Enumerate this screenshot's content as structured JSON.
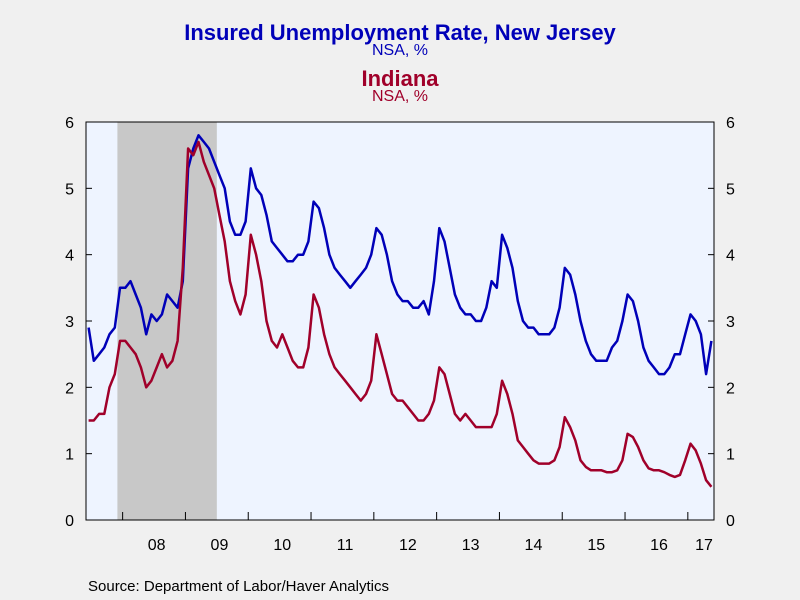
{
  "titles": {
    "series1_title": "Insured Unemployment Rate, New Jersey",
    "series1_unit": "NSA, %",
    "series2_title": "Indiana",
    "series2_unit": "NSA, %"
  },
  "source": "Source:  Department of Labor/Haver Analytics",
  "colors": {
    "nj": "#0000b8",
    "indiana": "#a0002a",
    "plot_bg": "#eef4ff",
    "recession": "#c8c8c8",
    "page_bg": "#f0f0f0"
  },
  "chart_data": {
    "type": "line",
    "x_ticks": [
      "08",
      "09",
      "10",
      "11",
      "12",
      "13",
      "14",
      "15",
      "16",
      "17"
    ],
    "xlim": [
      "2007-06",
      "2017-05"
    ],
    "ylim": [
      0,
      6
    ],
    "y_ticks": [
      0,
      1,
      2,
      3,
      4,
      5,
      6
    ],
    "y_axis_left_right": true,
    "recession_shading": [
      "2007-12",
      "2009-06"
    ],
    "series": [
      {
        "name": "Insured Unemployment Rate, New Jersey",
        "color": "#0000b8",
        "points": [
          [
            "2007-06",
            2.9
          ],
          [
            "2007-07",
            2.4
          ],
          [
            "2007-08",
            2.5
          ],
          [
            "2007-09",
            2.6
          ],
          [
            "2007-10",
            2.8
          ],
          [
            "2007-11",
            2.9
          ],
          [
            "2007-12",
            3.5
          ],
          [
            "2008-01",
            3.5
          ],
          [
            "2008-02",
            3.6
          ],
          [
            "2008-03",
            3.4
          ],
          [
            "2008-04",
            3.2
          ],
          [
            "2008-05",
            2.8
          ],
          [
            "2008-06",
            3.1
          ],
          [
            "2008-07",
            3.0
          ],
          [
            "2008-08",
            3.1
          ],
          [
            "2008-09",
            3.4
          ],
          [
            "2008-10",
            3.3
          ],
          [
            "2008-11",
            3.2
          ],
          [
            "2008-12",
            3.6
          ],
          [
            "2009-01",
            5.3
          ],
          [
            "2009-02",
            5.6
          ],
          [
            "2009-03",
            5.8
          ],
          [
            "2009-04",
            5.7
          ],
          [
            "2009-05",
            5.6
          ],
          [
            "2009-06",
            5.4
          ],
          [
            "2009-07",
            5.2
          ],
          [
            "2009-08",
            5.0
          ],
          [
            "2009-09",
            4.5
          ],
          [
            "2009-10",
            4.3
          ],
          [
            "2009-11",
            4.3
          ],
          [
            "2009-12",
            4.5
          ],
          [
            "2010-01",
            5.3
          ],
          [
            "2010-02",
            5.0
          ],
          [
            "2010-03",
            4.9
          ],
          [
            "2010-04",
            4.6
          ],
          [
            "2010-05",
            4.2
          ],
          [
            "2010-06",
            4.1
          ],
          [
            "2010-07",
            4.0
          ],
          [
            "2010-08",
            3.9
          ],
          [
            "2010-09",
            3.9
          ],
          [
            "2010-10",
            4.0
          ],
          [
            "2010-11",
            4.0
          ],
          [
            "2010-12",
            4.2
          ],
          [
            "2011-01",
            4.8
          ],
          [
            "2011-02",
            4.7
          ],
          [
            "2011-03",
            4.4
          ],
          [
            "2011-04",
            4.0
          ],
          [
            "2011-05",
            3.8
          ],
          [
            "2011-06",
            3.7
          ],
          [
            "2011-07",
            3.6
          ],
          [
            "2011-08",
            3.5
          ],
          [
            "2011-09",
            3.6
          ],
          [
            "2011-10",
            3.7
          ],
          [
            "2011-11",
            3.8
          ],
          [
            "2011-12",
            4.0
          ],
          [
            "2012-01",
            4.4
          ],
          [
            "2012-02",
            4.3
          ],
          [
            "2012-03",
            4.0
          ],
          [
            "2012-04",
            3.6
          ],
          [
            "2012-05",
            3.4
          ],
          [
            "2012-06",
            3.3
          ],
          [
            "2012-07",
            3.3
          ],
          [
            "2012-08",
            3.2
          ],
          [
            "2012-09",
            3.2
          ],
          [
            "2012-10",
            3.3
          ],
          [
            "2012-11",
            3.1
          ],
          [
            "2012-12",
            3.6
          ],
          [
            "2013-01",
            4.4
          ],
          [
            "2013-02",
            4.2
          ],
          [
            "2013-03",
            3.8
          ],
          [
            "2013-04",
            3.4
          ],
          [
            "2013-05",
            3.2
          ],
          [
            "2013-06",
            3.1
          ],
          [
            "2013-07",
            3.1
          ],
          [
            "2013-08",
            3.0
          ],
          [
            "2013-09",
            3.0
          ],
          [
            "2013-10",
            3.2
          ],
          [
            "2013-11",
            3.6
          ],
          [
            "2013-12",
            3.5
          ],
          [
            "2014-01",
            4.3
          ],
          [
            "2014-02",
            4.1
          ],
          [
            "2014-03",
            3.8
          ],
          [
            "2014-04",
            3.3
          ],
          [
            "2014-05",
            3.0
          ],
          [
            "2014-06",
            2.9
          ],
          [
            "2014-07",
            2.9
          ],
          [
            "2014-08",
            2.8
          ],
          [
            "2014-09",
            2.8
          ],
          [
            "2014-10",
            2.8
          ],
          [
            "2014-11",
            2.9
          ],
          [
            "2014-12",
            3.2
          ],
          [
            "2015-01",
            3.8
          ],
          [
            "2015-02",
            3.7
          ],
          [
            "2015-03",
            3.4
          ],
          [
            "2015-04",
            3.0
          ],
          [
            "2015-05",
            2.7
          ],
          [
            "2015-06",
            2.5
          ],
          [
            "2015-07",
            2.4
          ],
          [
            "2015-08",
            2.4
          ],
          [
            "2015-09",
            2.4
          ],
          [
            "2015-10",
            2.6
          ],
          [
            "2015-11",
            2.7
          ],
          [
            "2015-12",
            3.0
          ],
          [
            "2016-01",
            3.4
          ],
          [
            "2016-02",
            3.3
          ],
          [
            "2016-03",
            3.0
          ],
          [
            "2016-04",
            2.6
          ],
          [
            "2016-05",
            2.4
          ],
          [
            "2016-06",
            2.3
          ],
          [
            "2016-07",
            2.2
          ],
          [
            "2016-08",
            2.2
          ],
          [
            "2016-09",
            2.3
          ],
          [
            "2016-10",
            2.5
          ],
          [
            "2016-11",
            2.5
          ],
          [
            "2016-12",
            2.8
          ],
          [
            "2017-01",
            3.1
          ],
          [
            "2017-02",
            3.0
          ],
          [
            "2017-03",
            2.8
          ],
          [
            "2017-04",
            2.2
          ],
          [
            "2017-05",
            2.7
          ]
        ]
      },
      {
        "name": "Indiana",
        "color": "#a0002a",
        "points": [
          [
            "2007-06",
            1.5
          ],
          [
            "2007-07",
            1.5
          ],
          [
            "2007-08",
            1.6
          ],
          [
            "2007-09",
            1.6
          ],
          [
            "2007-10",
            2.0
          ],
          [
            "2007-11",
            2.2
          ],
          [
            "2007-12",
            2.7
          ],
          [
            "2008-01",
            2.7
          ],
          [
            "2008-02",
            2.6
          ],
          [
            "2008-03",
            2.5
          ],
          [
            "2008-04",
            2.3
          ],
          [
            "2008-05",
            2.0
          ],
          [
            "2008-06",
            2.1
          ],
          [
            "2008-07",
            2.3
          ],
          [
            "2008-08",
            2.5
          ],
          [
            "2008-09",
            2.3
          ],
          [
            "2008-10",
            2.4
          ],
          [
            "2008-11",
            2.7
          ],
          [
            "2008-12",
            3.8
          ],
          [
            "2009-01",
            5.6
          ],
          [
            "2009-02",
            5.5
          ],
          [
            "2009-03",
            5.7
          ],
          [
            "2009-04",
            5.4
          ],
          [
            "2009-05",
            5.2
          ],
          [
            "2009-06",
            5.0
          ],
          [
            "2009-07",
            4.6
          ],
          [
            "2009-08",
            4.2
          ],
          [
            "2009-09",
            3.6
          ],
          [
            "2009-10",
            3.3
          ],
          [
            "2009-11",
            3.1
          ],
          [
            "2009-12",
            3.4
          ],
          [
            "2010-01",
            4.3
          ],
          [
            "2010-02",
            4.0
          ],
          [
            "2010-03",
            3.6
          ],
          [
            "2010-04",
            3.0
          ],
          [
            "2010-05",
            2.7
          ],
          [
            "2010-06",
            2.6
          ],
          [
            "2010-07",
            2.8
          ],
          [
            "2010-08",
            2.6
          ],
          [
            "2010-09",
            2.4
          ],
          [
            "2010-10",
            2.3
          ],
          [
            "2010-11",
            2.3
          ],
          [
            "2010-12",
            2.6
          ],
          [
            "2011-01",
            3.4
          ],
          [
            "2011-02",
            3.2
          ],
          [
            "2011-03",
            2.8
          ],
          [
            "2011-04",
            2.5
          ],
          [
            "2011-05",
            2.3
          ],
          [
            "2011-06",
            2.2
          ],
          [
            "2011-07",
            2.1
          ],
          [
            "2011-08",
            2.0
          ],
          [
            "2011-09",
            1.9
          ],
          [
            "2011-10",
            1.8
          ],
          [
            "2011-11",
            1.9
          ],
          [
            "2011-12",
            2.1
          ],
          [
            "2012-01",
            2.8
          ],
          [
            "2012-02",
            2.5
          ],
          [
            "2012-03",
            2.2
          ],
          [
            "2012-04",
            1.9
          ],
          [
            "2012-05",
            1.8
          ],
          [
            "2012-06",
            1.8
          ],
          [
            "2012-07",
            1.7
          ],
          [
            "2012-08",
            1.6
          ],
          [
            "2012-09",
            1.5
          ],
          [
            "2012-10",
            1.5
          ],
          [
            "2012-11",
            1.6
          ],
          [
            "2012-12",
            1.8
          ],
          [
            "2013-01",
            2.3
          ],
          [
            "2013-02",
            2.2
          ],
          [
            "2013-03",
            1.9
          ],
          [
            "2013-04",
            1.6
          ],
          [
            "2013-05",
            1.5
          ],
          [
            "2013-06",
            1.6
          ],
          [
            "2013-07",
            1.5
          ],
          [
            "2013-08",
            1.4
          ],
          [
            "2013-09",
            1.4
          ],
          [
            "2013-10",
            1.4
          ],
          [
            "2013-11",
            1.4
          ],
          [
            "2013-12",
            1.6
          ],
          [
            "2014-01",
            2.1
          ],
          [
            "2014-02",
            1.9
          ],
          [
            "2014-03",
            1.6
          ],
          [
            "2014-04",
            1.2
          ],
          [
            "2014-05",
            1.1
          ],
          [
            "2014-06",
            1.0
          ],
          [
            "2014-07",
            0.9
          ],
          [
            "2014-08",
            0.85
          ],
          [
            "2014-09",
            0.85
          ],
          [
            "2014-10",
            0.85
          ],
          [
            "2014-11",
            0.9
          ],
          [
            "2014-12",
            1.1
          ],
          [
            "2015-01",
            1.55
          ],
          [
            "2015-02",
            1.4
          ],
          [
            "2015-03",
            1.2
          ],
          [
            "2015-04",
            0.9
          ],
          [
            "2015-05",
            0.8
          ],
          [
            "2015-06",
            0.75
          ],
          [
            "2015-07",
            0.75
          ],
          [
            "2015-08",
            0.75
          ],
          [
            "2015-09",
            0.72
          ],
          [
            "2015-10",
            0.72
          ],
          [
            "2015-11",
            0.75
          ],
          [
            "2015-12",
            0.9
          ],
          [
            "2016-01",
            1.3
          ],
          [
            "2016-02",
            1.25
          ],
          [
            "2016-03",
            1.1
          ],
          [
            "2016-04",
            0.9
          ],
          [
            "2016-05",
            0.78
          ],
          [
            "2016-06",
            0.75
          ],
          [
            "2016-07",
            0.75
          ],
          [
            "2016-08",
            0.72
          ],
          [
            "2016-09",
            0.68
          ],
          [
            "2016-10",
            0.65
          ],
          [
            "2016-11",
            0.68
          ],
          [
            "2016-12",
            0.9
          ],
          [
            "2017-01",
            1.15
          ],
          [
            "2017-02",
            1.05
          ],
          [
            "2017-03",
            0.85
          ],
          [
            "2017-04",
            0.6
          ],
          [
            "2017-05",
            0.5
          ]
        ]
      }
    ]
  }
}
